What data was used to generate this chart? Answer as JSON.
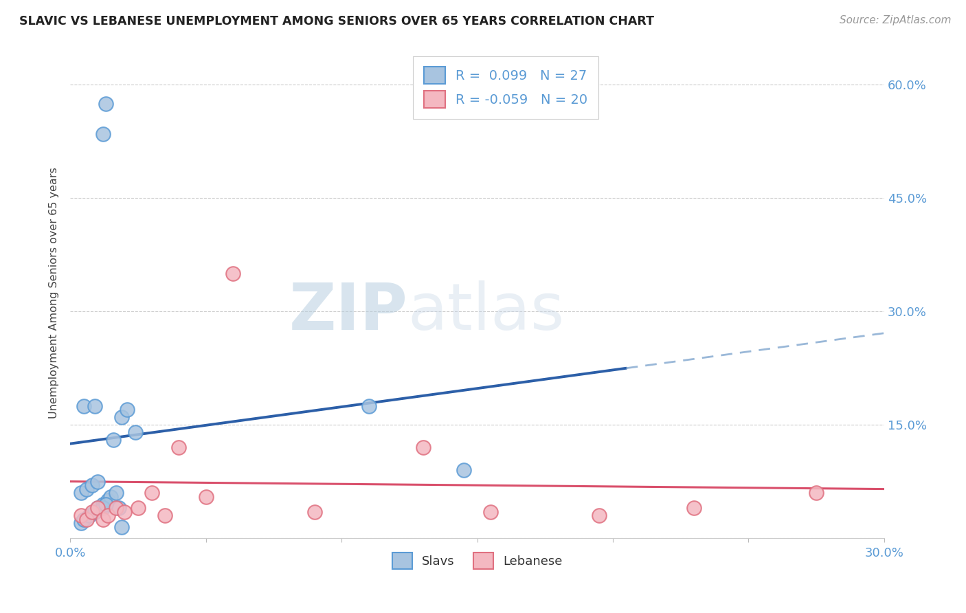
{
  "title": "SLAVIC VS LEBANESE UNEMPLOYMENT AMONG SENIORS OVER 65 YEARS CORRELATION CHART",
  "source": "Source: ZipAtlas.com",
  "ylabel": "Unemployment Among Seniors over 65 years",
  "xlim": [
    0.0,
    0.3
  ],
  "ylim": [
    0.0,
    0.65
  ],
  "slavs_color": "#a8c4e0",
  "slavs_edge_color": "#5b9bd5",
  "lebanese_color": "#f4b8c1",
  "lebanese_edge_color": "#e07080",
  "slavs_R": 0.099,
  "slavs_N": 27,
  "lebanese_R": -0.059,
  "lebanese_N": 20,
  "slavs_line_color": "#2c5fa8",
  "lebanese_line_color": "#d94f6b",
  "dashed_line_color": "#9ab8d8",
  "watermark_zip": "ZIP",
  "watermark_atlas": "atlas",
  "background_color": "#ffffff",
  "grid_color": "#cccccc",
  "tick_color": "#5b9bd5",
  "slavs_x": [
    0.004,
    0.005,
    0.007,
    0.009,
    0.01,
    0.012,
    0.014,
    0.015,
    0.017,
    0.018,
    0.004,
    0.006,
    0.008,
    0.01,
    0.012,
    0.013,
    0.016,
    0.019,
    0.021,
    0.024,
    0.005,
    0.009,
    0.11,
    0.145,
    0.013,
    0.012,
    0.019
  ],
  "slavs_y": [
    0.02,
    0.025,
    0.03,
    0.035,
    0.04,
    0.045,
    0.05,
    0.055,
    0.06,
    0.04,
    0.06,
    0.065,
    0.07,
    0.075,
    0.04,
    0.045,
    0.13,
    0.16,
    0.17,
    0.14,
    0.175,
    0.175,
    0.175,
    0.09,
    0.575,
    0.535,
    0.015
  ],
  "lebanese_x": [
    0.004,
    0.006,
    0.008,
    0.01,
    0.012,
    0.014,
    0.017,
    0.02,
    0.025,
    0.03,
    0.035,
    0.04,
    0.05,
    0.06,
    0.09,
    0.13,
    0.155,
    0.195,
    0.23,
    0.275
  ],
  "lebanese_y": [
    0.03,
    0.025,
    0.035,
    0.04,
    0.025,
    0.03,
    0.04,
    0.035,
    0.04,
    0.06,
    0.03,
    0.12,
    0.055,
    0.35,
    0.035,
    0.12,
    0.035,
    0.03,
    0.04,
    0.06
  ]
}
